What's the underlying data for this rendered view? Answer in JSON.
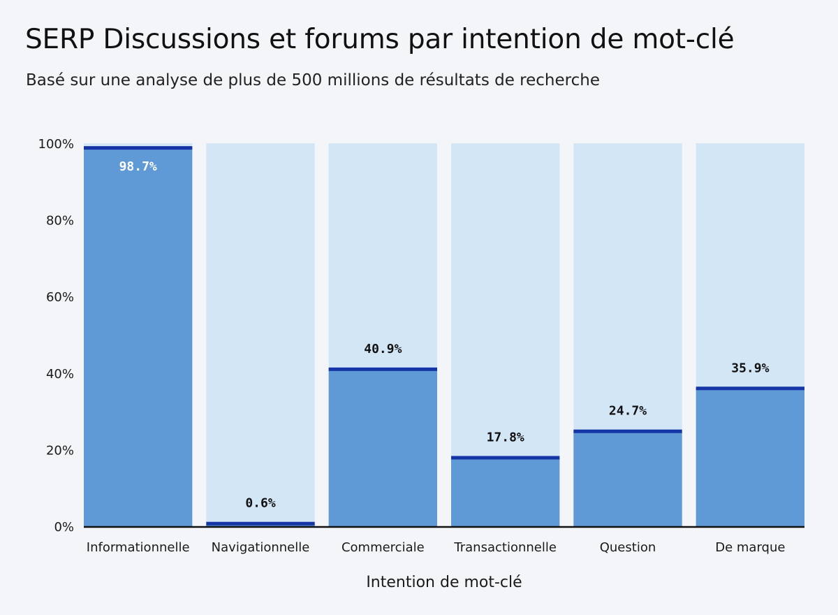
{
  "chart_data": {
    "type": "bar",
    "title": "SERP Discussions et forums par intention de mot-clé",
    "subtitle": "Basé sur une analyse de plus de 500 millions de résultats de recherche",
    "xlabel": "Intention de mot-clé",
    "ylabel": "",
    "categories": [
      "Informationnelle",
      "Navigationnelle",
      "Commerciale",
      "Transactionnelle",
      "Question",
      "De marque"
    ],
    "values": [
      98.7,
      0.6,
      40.9,
      17.8,
      24.7,
      35.9
    ],
    "data_labels": [
      "98.7%",
      "0.6%",
      "40.9%",
      "17.8%",
      "24.7%",
      "35.9%"
    ],
    "ylim": [
      0,
      100
    ],
    "yticks": [
      0,
      20,
      40,
      60,
      80,
      100
    ],
    "ytick_labels": [
      "0%",
      "20%",
      "40%",
      "60%",
      "80%",
      "100%"
    ],
    "grid": false,
    "legend": "none",
    "colors": {
      "bar": "#5f99d6",
      "background_bar": "#d3e6f6",
      "top_line": "#1535a6",
      "axis": "#111111"
    }
  }
}
